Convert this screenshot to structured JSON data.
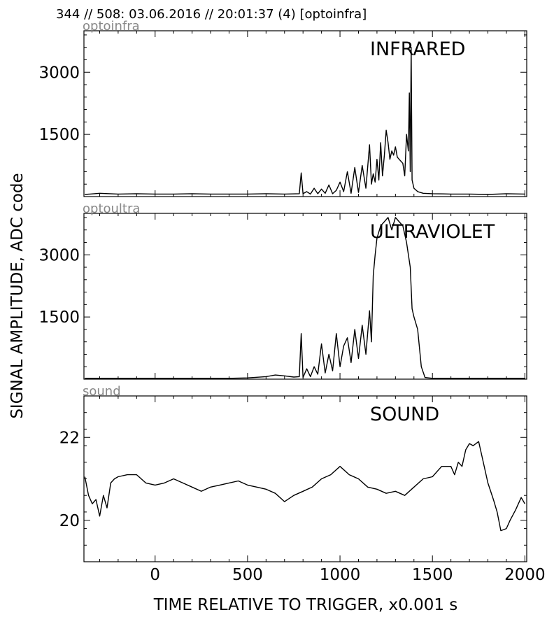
{
  "header": "344 // 508:   03.06.2016 // 20:01:37 (4)  [optoinfra]",
  "ylabel": "SIGNAL AMPLITUDE,  ADC code",
  "xlabel": "TIME RELATIVE TO TRIGGER,   x0.001 s",
  "chart_data": [
    {
      "type": "line",
      "source": "optoinfra",
      "label": "INFRARED",
      "xlim": [
        -385,
        2010
      ],
      "ylim": [
        0,
        4000
      ],
      "yticks": [
        1500,
        3000
      ],
      "xticks": [
        0,
        500,
        1000,
        1500,
        2000
      ],
      "x": [
        -380,
        -300,
        -200,
        -100,
        0,
        100,
        200,
        300,
        400,
        500,
        600,
        700,
        780,
        790,
        800,
        820,
        840,
        860,
        880,
        900,
        920,
        940,
        960,
        980,
        1000,
        1020,
        1040,
        1060,
        1080,
        1100,
        1120,
        1140,
        1160,
        1170,
        1180,
        1190,
        1200,
        1210,
        1220,
        1230,
        1240,
        1250,
        1260,
        1270,
        1280,
        1290,
        1300,
        1310,
        1320,
        1330,
        1340,
        1350,
        1360,
        1370,
        1375,
        1380,
        1385,
        1390,
        1400,
        1420,
        1450,
        1500,
        1600,
        1700,
        1800,
        1900,
        2000
      ],
      "values": [
        50,
        80,
        60,
        70,
        60,
        60,
        70,
        60,
        60,
        60,
        70,
        60,
        70,
        570,
        70,
        120,
        60,
        200,
        70,
        180,
        80,
        280,
        70,
        150,
        350,
        120,
        600,
        80,
        700,
        100,
        750,
        200,
        1250,
        300,
        550,
        350,
        900,
        400,
        1300,
        500,
        1000,
        1600,
        1300,
        900,
        1100,
        1000,
        1200,
        950,
        900,
        850,
        800,
        500,
        1500,
        1100,
        2500,
        600,
        3600,
        400,
        200,
        120,
        80,
        70,
        60,
        60,
        50,
        70,
        60
      ]
    },
    {
      "type": "line",
      "source": "optoultra",
      "label": "ULTRAVIOLET",
      "xlim": [
        -385,
        2010
      ],
      "ylim": [
        0,
        4000
      ],
      "yticks": [
        1500,
        3000
      ],
      "xticks": [
        0,
        500,
        1000,
        1500,
        2000
      ],
      "x": [
        -380,
        -200,
        0,
        200,
        400,
        500,
        600,
        650,
        700,
        750,
        780,
        790,
        800,
        820,
        840,
        860,
        880,
        900,
        920,
        940,
        960,
        980,
        1000,
        1020,
        1040,
        1060,
        1080,
        1100,
        1120,
        1140,
        1160,
        1170,
        1180,
        1190,
        1200,
        1220,
        1240,
        1260,
        1280,
        1300,
        1320,
        1340,
        1360,
        1380,
        1390,
        1400,
        1420,
        1440,
        1460,
        1500,
        1600,
        1800,
        2000
      ],
      "values": [
        20,
        20,
        20,
        20,
        20,
        30,
        60,
        100,
        80,
        50,
        60,
        1100,
        40,
        250,
        60,
        300,
        120,
        850,
        150,
        600,
        200,
        1100,
        300,
        800,
        1000,
        400,
        1200,
        500,
        1300,
        600,
        1650,
        900,
        2500,
        3000,
        3400,
        3700,
        3800,
        3900,
        3600,
        3900,
        3800,
        3700,
        3300,
        2700,
        1700,
        1500,
        1200,
        300,
        40,
        20,
        20,
        20,
        20
      ]
    },
    {
      "type": "line",
      "source": "sound",
      "label": "SOUND",
      "xlim": [
        -385,
        2010
      ],
      "ylim": [
        19,
        23
      ],
      "yticks": [
        20,
        22
      ],
      "xticks": [
        0,
        500,
        1000,
        1500,
        2000
      ],
      "x": [
        -380,
        -360,
        -340,
        -320,
        -300,
        -280,
        -260,
        -240,
        -220,
        -200,
        -150,
        -100,
        -50,
        0,
        50,
        100,
        150,
        200,
        250,
        300,
        350,
        400,
        450,
        500,
        550,
        600,
        650,
        700,
        750,
        800,
        850,
        900,
        950,
        1000,
        1050,
        1100,
        1150,
        1200,
        1250,
        1300,
        1350,
        1400,
        1450,
        1500,
        1550,
        1600,
        1620,
        1640,
        1660,
        1680,
        1700,
        1720,
        1750,
        1770,
        1800,
        1830,
        1850,
        1870,
        1900,
        1920,
        1950,
        1980,
        2000
      ],
      "values": [
        21.05,
        20.6,
        20.4,
        20.5,
        20.1,
        20.6,
        20.3,
        20.9,
        21.0,
        21.05,
        21.1,
        21.1,
        20.9,
        20.85,
        20.9,
        21.0,
        20.9,
        20.8,
        20.7,
        20.8,
        20.85,
        20.9,
        20.95,
        20.85,
        20.8,
        20.75,
        20.65,
        20.45,
        20.6,
        20.7,
        20.8,
        21.0,
        21.1,
        21.3,
        21.1,
        21.0,
        20.8,
        20.75,
        20.65,
        20.7,
        20.6,
        20.8,
        21.0,
        21.05,
        21.3,
        21.3,
        21.1,
        21.4,
        21.3,
        21.7,
        21.85,
        21.8,
        21.9,
        21.5,
        20.9,
        20.5,
        20.2,
        19.75,
        19.8,
        20.0,
        20.25,
        20.55,
        20.4
      ]
    }
  ]
}
